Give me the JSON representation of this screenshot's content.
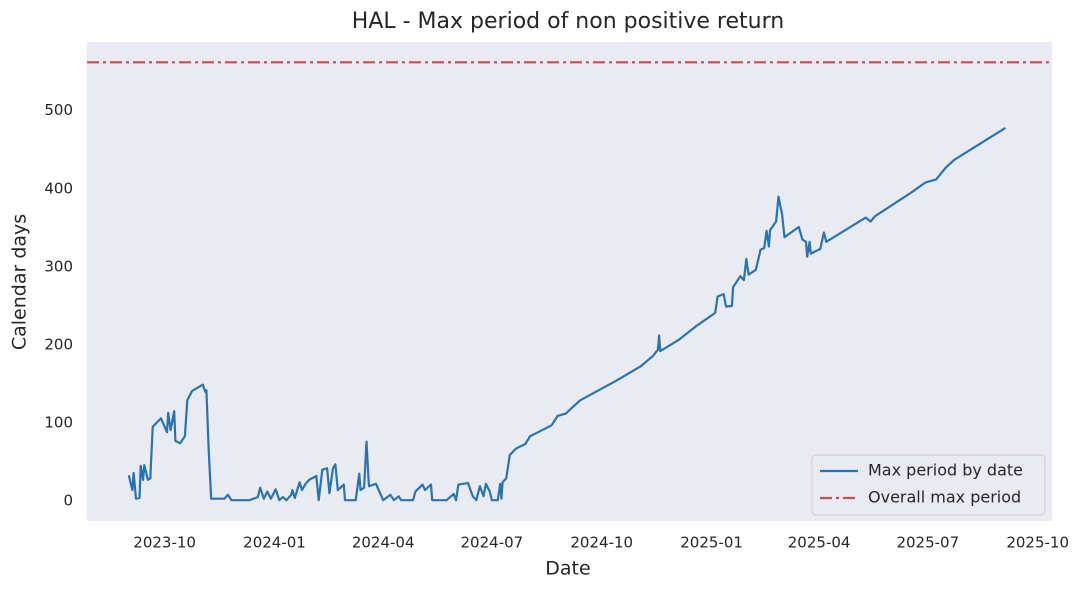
{
  "chart_data": {
    "type": "line",
    "title": "HAL - Max period of non positive return",
    "xlabel": "Date",
    "ylabel": "Calendar days",
    "xlim": [
      "2023-07-28",
      "2025-10-13"
    ],
    "xticks": [
      {
        "value": "2023-10-01",
        "label": "2023-10"
      },
      {
        "value": "2024-01-01",
        "label": "2024-01"
      },
      {
        "value": "2024-04-01",
        "label": "2024-04"
      },
      {
        "value": "2024-07-01",
        "label": "2024-07"
      },
      {
        "value": "2024-10-01",
        "label": "2024-10"
      },
      {
        "value": "2025-01-01",
        "label": "2025-01"
      },
      {
        "value": "2025-04-01",
        "label": "2025-04"
      },
      {
        "value": "2025-07-01",
        "label": "2025-07"
      },
      {
        "value": "2025-10-01",
        "label": "2025-10"
      }
    ],
    "ylim": [
      -25.6,
      588
    ],
    "yticks": [
      0,
      100,
      200,
      300,
      400,
      500
    ],
    "background": "#eaeaf2",
    "legend": "lower right",
    "x": [
      "2023-09-01",
      "2023-09-04",
      "2023-09-05",
      "2023-09-07",
      "2023-09-10",
      "2023-09-11",
      "2023-09-13",
      "2023-09-14",
      "2023-09-17",
      "2023-09-19",
      "2023-09-21",
      "2023-09-24",
      "2023-09-28",
      "2023-10-03",
      "2023-10-04",
      "2023-10-06",
      "2023-10-09",
      "2023-10-10",
      "2023-10-14",
      "2023-10-18",
      "2023-10-20",
      "2023-10-24",
      "2023-11-02",
      "2023-11-04",
      "2023-11-05",
      "2023-11-07",
      "2023-11-09",
      "2023-11-20",
      "2023-11-23",
      "2023-11-26",
      "2023-12-11",
      "2023-12-18",
      "2023-12-20",
      "2023-12-23",
      "2023-12-26",
      "2023-12-29",
      "2024-01-02",
      "2024-01-05",
      "2024-01-08",
      "2024-01-11",
      "2024-01-15",
      "2024-01-16",
      "2024-01-18",
      "2024-01-22",
      "2024-01-24",
      "2024-01-27",
      "2024-01-30",
      "2024-02-05",
      "2024-02-07",
      "2024-02-10",
      "2024-02-14",
      "2024-02-16",
      "2024-02-19",
      "2024-02-21",
      "2024-02-23",
      "2024-02-28",
      "2024-02-29",
      "2024-03-09",
      "2024-03-12",
      "2024-03-13",
      "2024-03-16",
      "2024-03-18",
      "2024-03-20",
      "2024-03-26",
      "2024-04-01",
      "2024-04-07",
      "2024-04-10",
      "2024-04-14",
      "2024-04-16",
      "2024-04-26",
      "2024-04-28",
      "2024-05-04",
      "2024-05-06",
      "2024-05-11",
      "2024-05-12",
      "2024-05-24",
      "2024-05-30",
      "2024-06-01",
      "2024-06-03",
      "2024-06-11",
      "2024-06-15",
      "2024-06-18",
      "2024-06-21",
      "2024-06-24",
      "2024-06-26",
      "2024-06-29",
      "2024-07-01",
      "2024-07-06",
      "2024-07-08",
      "2024-07-09",
      "2024-07-10",
      "2024-07-13",
      "2024-07-16",
      "2024-07-21",
      "2024-07-29",
      "2024-08-02",
      "2024-08-11",
      "2024-08-20",
      "2024-08-25",
      "2024-09-01",
      "2024-09-05",
      "2024-09-13",
      "2024-10-13",
      "2024-11-03",
      "2024-11-13",
      "2024-11-17",
      "2024-11-18",
      "2024-11-19",
      "2024-12-04",
      "2024-12-19",
      "2025-01-04",
      "2025-01-06",
      "2025-01-11",
      "2025-01-13",
      "2025-01-18",
      "2025-01-19",
      "2025-01-25",
      "2025-01-28",
      "2025-01-30",
      "2025-02-01",
      "2025-02-07",
      "2025-02-11",
      "2025-02-14",
      "2025-02-16",
      "2025-02-18",
      "2025-02-19",
      "2025-02-24",
      "2025-02-26",
      "2025-03-01",
      "2025-03-03",
      "2025-03-15",
      "2025-03-18",
      "2025-03-21",
      "2025-03-22",
      "2025-03-24",
      "2025-03-25",
      "2025-04-02",
      "2025-04-05",
      "2025-04-07",
      "2025-04-23",
      "2025-05-10",
      "2025-05-14",
      "2025-05-18",
      "2025-06-17",
      "2025-06-29",
      "2025-07-08",
      "2025-07-16",
      "2025-07-23",
      "2025-09-04"
    ],
    "series": [
      {
        "name": "Max period by date",
        "color": "#2874b2",
        "values": [
          33,
          14,
          36,
          3,
          4,
          45,
          27,
          46,
          27,
          29,
          95,
          100,
          106,
          88,
          113,
          91,
          115,
          77,
          74,
          83,
          129,
          141,
          149,
          140,
          142,
          62,
          3,
          3,
          8,
          1,
          1,
          5,
          17,
          3,
          12,
          3,
          15,
          1,
          5,
          1,
          8,
          14,
          4,
          24,
          14,
          22,
          27,
          32,
          1,
          40,
          42,
          10,
          42,
          47,
          14,
          21,
          1,
          1,
          35,
          14,
          17,
          76,
          19,
          22,
          1,
          8,
          1,
          6,
          1,
          1,
          12,
          21,
          14,
          21,
          1,
          1,
          9,
          1,
          21,
          23,
          6,
          1,
          19,
          6,
          22,
          13,
          1,
          1,
          22,
          3,
          24,
          29,
          59,
          67,
          73,
          83,
          90,
          97,
          109,
          112,
          118,
          129,
          154,
          173,
          186,
          194,
          212,
          192,
          206,
          224,
          241,
          262,
          265,
          249,
          250,
          274,
          288,
          283,
          310,
          290,
          296,
          322,
          324,
          346,
          326,
          347,
          358,
          390,
          367,
          338,
          351,
          335,
          332,
          313,
          332,
          317,
          323,
          344,
          332,
          347,
          363,
          358,
          365,
          395,
          408,
          412,
          427,
          437,
          478
        ]
      },
      {
        "name": "Overall max period",
        "color": "#c44e52",
        "hline": 562
      }
    ]
  }
}
